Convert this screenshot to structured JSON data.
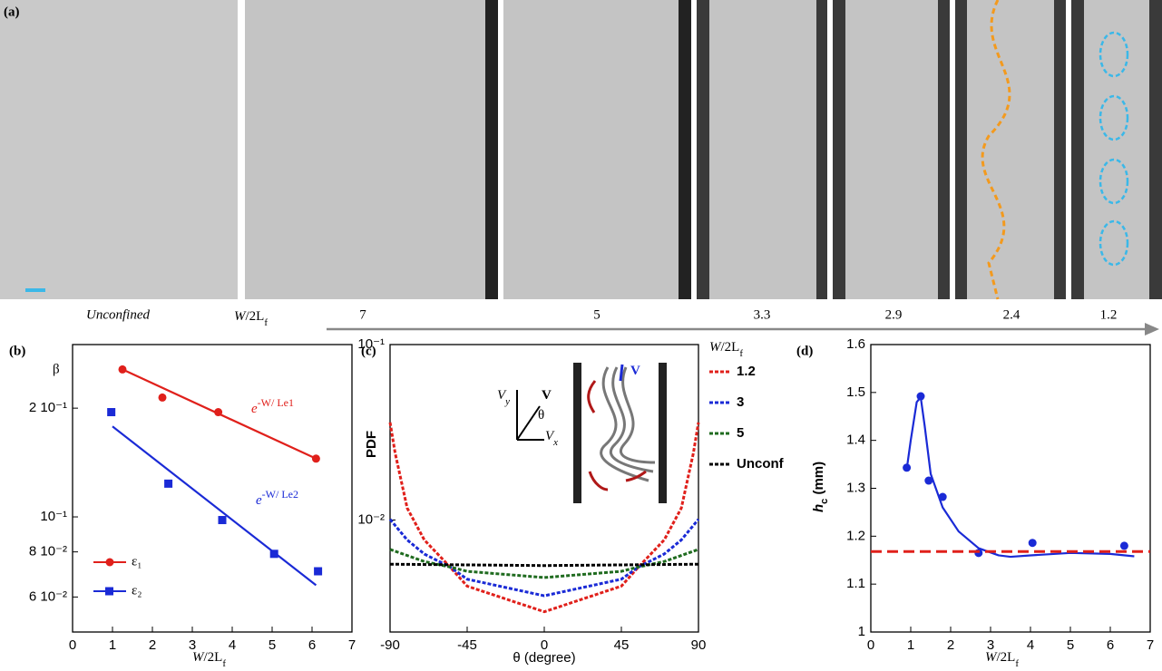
{
  "panel_a": {
    "label": "(a)",
    "unconfined": "Unconfined",
    "axis_label": [
      "W",
      "/2L",
      "f"
    ],
    "ratios": [
      "7",
      "5",
      "3.3",
      "2.9",
      "2.4",
      "1.2"
    ]
  },
  "chart_data": [
    {
      "type": "scatter",
      "label": "(b)",
      "ylabel": "β",
      "xlabel": [
        "W",
        "/2L",
        "f"
      ],
      "log_y": true,
      "xlim": [
        0,
        7
      ],
      "xticks": [
        0,
        1,
        2,
        3,
        4,
        5,
        6,
        7
      ],
      "ylim": [
        0.048,
        0.3
      ],
      "yticks": [
        {
          "value": 0.06,
          "label": "6 10⁻²"
        },
        {
          "value": 0.08,
          "label": "8 10⁻²"
        },
        {
          "value": 0.1,
          "label": "10⁻¹"
        },
        {
          "value": 0.2,
          "label": "2 10⁻¹"
        }
      ],
      "series": [
        {
          "name": "ε₁",
          "color": "#e0201b",
          "marker": "circle",
          "x": [
            1.25,
            2.25,
            3.65,
            6.1
          ],
          "values": [
            0.256,
            0.214,
            0.195,
            0.145
          ]
        },
        {
          "name": "ε₂",
          "color": "#1a2ad6",
          "marker": "square",
          "x": [
            0.97,
            2.4,
            3.75,
            5.05,
            6.15
          ],
          "values": [
            0.195,
            0.1236,
            0.098,
            0.079,
            0.0707
          ]
        },
        {
          "color": "#e0201b",
          "x": [
            1.25,
            6.1
          ],
          "values": [
            0.256,
            0.145
          ]
        },
        {
          "color": "#1a2ad6",
          "x": [
            1,
            6.1
          ],
          "values": [
            0.178,
            0.0647
          ]
        }
      ],
      "annotations": [
        {
          "base": "e",
          "exp": "-W/ Le1",
          "color": "#e0201b"
        },
        {
          "base": "e",
          "exp": "-W/ Le2",
          "color": "#1a2ad6"
        }
      ]
    },
    {
      "type": "line",
      "label": "(c)",
      "ylabel": "PDF",
      "xlabel": "θ (degree)",
      "log_y": true,
      "xlim": [
        -90,
        90
      ],
      "xticks": [
        -90,
        -45,
        0,
        45,
        90
      ],
      "ylim": [
        0.0023,
        0.1
      ],
      "yticks": [
        {
          "value": 0.01,
          "label": "10⁻²"
        },
        {
          "value": 0.1,
          "label": "10⁻¹"
        }
      ],
      "legend_title": [
        "W",
        "/2L",
        "f"
      ],
      "series": [
        {
          "name": "1.2",
          "color": "#e0201b",
          "dash": true,
          "x": [
            -90,
            -87,
            -80,
            -70,
            -55,
            -45,
            0,
            45,
            55,
            70,
            80,
            87,
            90
          ],
          "values": [
            0.036,
            0.024,
            0.0117,
            0.0077,
            0.0054,
            0.0042,
            0.003,
            0.0042,
            0.0054,
            0.0077,
            0.0117,
            0.024,
            0.036
          ]
        },
        {
          "name": "3",
          "color": "#1a2ad6",
          "dash": true,
          "x": [
            -90,
            -80,
            -70,
            -55,
            -45,
            0,
            45,
            55,
            70,
            80,
            90
          ],
          "values": [
            0.0101,
            0.0077,
            0.0064,
            0.0054,
            0.0046,
            0.0037,
            0.0046,
            0.0054,
            0.0064,
            0.0077,
            0.0101
          ]
        },
        {
          "name": "5",
          "color": "#1f6b1f",
          "dash": true,
          "x": [
            -90,
            -70,
            -55,
            -45,
            0,
            45,
            55,
            70,
            90
          ],
          "values": [
            0.0068,
            0.0058,
            0.0054,
            0.0051,
            0.0047,
            0.0051,
            0.0054,
            0.0058,
            0.0068
          ]
        },
        {
          "name": "Unconf",
          "color": "#000000",
          "dash": true,
          "x": [
            -90,
            0,
            90
          ],
          "values": [
            0.0056,
            0.0055,
            0.0056
          ]
        }
      ],
      "inset_labels": [
        {
          "text": "V",
          "sub": "y"
        },
        {
          "text": "V"
        },
        {
          "text": "θ"
        },
        {
          "text": "V",
          "sub": "x"
        },
        {
          "text": "V"
        }
      ]
    },
    {
      "type": "scatter",
      "label": "(d)",
      "ylabel": [
        "h",
        "c",
        " (mm)"
      ],
      "xlabel": [
        "W",
        "/2L",
        "f"
      ],
      "xlim": [
        0,
        7
      ],
      "xticks": [
        0,
        1,
        2,
        3,
        4,
        5,
        6,
        7
      ],
      "ylim": [
        1,
        1.6
      ],
      "yticks": [
        1,
        1.1,
        1.2,
        1.3,
        1.4,
        1.5,
        1.6
      ],
      "series": [
        {
          "color": "#1a2ad6",
          "marker": "circle",
          "x": [
            0.9,
            1.25,
            1.45,
            1.8,
            2.7,
            4.05,
            6.35
          ],
          "values": [
            1.343,
            1.492,
            1.316,
            1.282,
            1.165,
            1.186,
            1.18
          ]
        },
        {
          "color": "#1a2ad6",
          "x": [
            0.9,
            1.0,
            1.15,
            1.25,
            1.35,
            1.5,
            1.8,
            2.2,
            2.7,
            3.2,
            3.5,
            4,
            5,
            6,
            6.6
          ],
          "values": [
            1.34,
            1.4,
            1.48,
            1.49,
            1.43,
            1.33,
            1.26,
            1.21,
            1.175,
            1.16,
            1.157,
            1.16,
            1.165,
            1.163,
            1.158
          ]
        },
        {
          "color": "#e0201b",
          "dash": true,
          "x": [
            0,
            7
          ],
          "values": [
            1.168,
            1.168
          ]
        }
      ]
    }
  ]
}
